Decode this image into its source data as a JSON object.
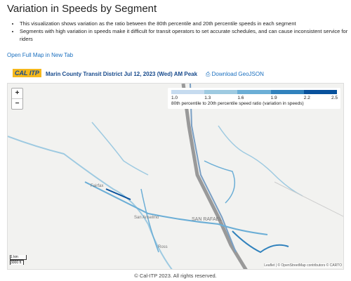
{
  "page": {
    "title": "Variation in Speeds by Segment",
    "bullets": [
      "This visualization shows variation as the ratio between the 80th percentile and 20th percentile speeds in each segment",
      "Segments with high variation in speeds make it difficult for transit operators to set accurate schedules, and can cause inconsistent service for riders"
    ],
    "link": "Open Full Map in New Tab",
    "map_header": {
      "logo": [
        "CAL",
        "ITP"
      ],
      "title": "Marin County Transit District Jul 12, 2023 (Wed) AM Peak",
      "download": "Download GeoJSON"
    },
    "map": {
      "zoom": [
        "+",
        "−"
      ],
      "legend": {
        "ticks": [
          "1.0",
          "1.3",
          "1.6",
          "1.9",
          "2.2",
          "2.5"
        ],
        "colors": [
          "#c6dbef",
          "#9ecae1",
          "#6baed6",
          "#3182bd",
          "#08519c"
        ],
        "caption": "80th percentile to 20th percentile speed ratio (variation in speeds)"
      },
      "places": [
        "Fairfax",
        "San Anselmo",
        "SAN RAFAEL",
        "Ross"
      ],
      "scale": [
        "1 km",
        "3000 ft"
      ],
      "attribution": "Leaflet | © OpenStreetMap contributors © CARTO"
    },
    "footer": "© Cal-ITP 2023. All rights reserved."
  }
}
